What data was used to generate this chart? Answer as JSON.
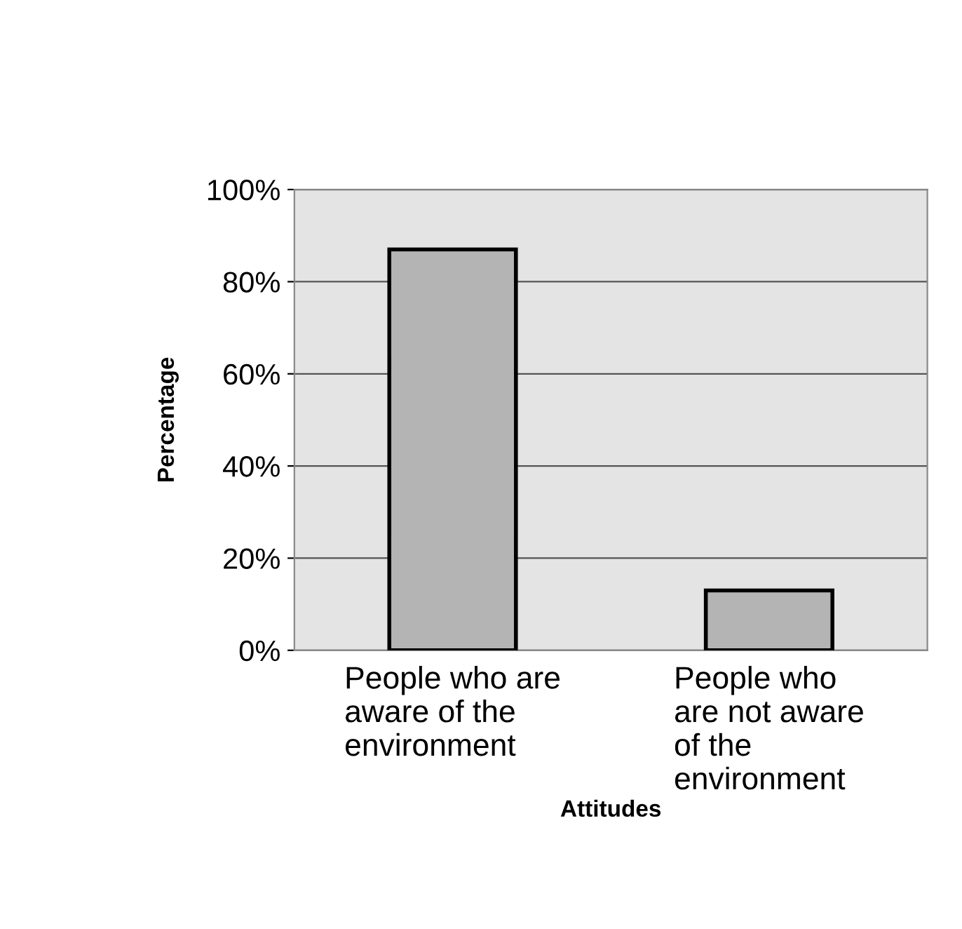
{
  "chart_data": {
    "type": "bar",
    "categories": [
      "People who are\naware of the\nenvironment",
      "People who\nare not aware\nof the\nenvironment"
    ],
    "values": [
      87,
      13
    ],
    "color": "#b4b4b4",
    "xlabel": "Attitudes",
    "ylabel": "Percentage",
    "ylim": [
      0,
      100
    ],
    "yticks": [
      {
        "value": 0,
        "label": "0%"
      },
      {
        "value": 20,
        "label": "20%"
      },
      {
        "value": 40,
        "label": "40%"
      },
      {
        "value": 60,
        "label": "60%"
      },
      {
        "value": 80,
        "label": "80%"
      },
      {
        "value": 100,
        "label": "100%"
      }
    ],
    "grid": "y"
  }
}
